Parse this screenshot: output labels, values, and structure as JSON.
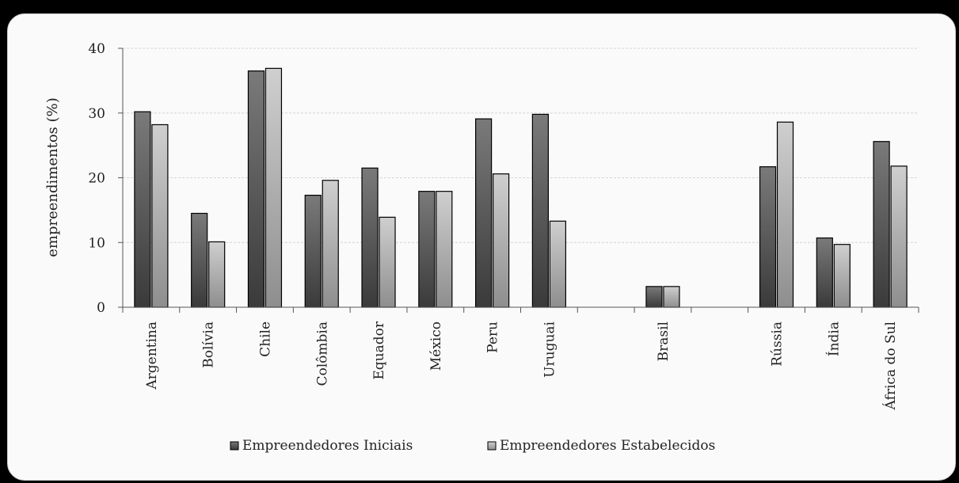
{
  "chart_data": {
    "type": "bar",
    "ylabel": "empreendimentos (%)",
    "ylim": [
      0,
      40
    ],
    "yticks": [
      "0",
      "10",
      "20",
      "30",
      "40"
    ],
    "grid": true,
    "legend_position": "bottom",
    "categories": [
      "Argentina",
      "Bolívia",
      "Chile",
      "Colômbia",
      "Equador",
      "México",
      "Peru",
      "Uruguai",
      "",
      "Brasil",
      "",
      "Rússia",
      "Índia",
      "África do Sul"
    ],
    "series": [
      {
        "name": "Empreendedores Iniciais",
        "color": "#555555",
        "values": [
          30.2,
          14.5,
          36.5,
          17.3,
          21.5,
          17.9,
          29.1,
          29.8,
          null,
          3.2,
          null,
          21.7,
          10.7,
          25.6
        ]
      },
      {
        "name": "Empreendedores Estabelecidos",
        "color": "#b8b8b8",
        "values": [
          28.2,
          10.1,
          36.9,
          19.6,
          13.9,
          17.9,
          20.6,
          13.3,
          null,
          3.2,
          null,
          28.6,
          9.7,
          21.8
        ]
      }
    ]
  }
}
